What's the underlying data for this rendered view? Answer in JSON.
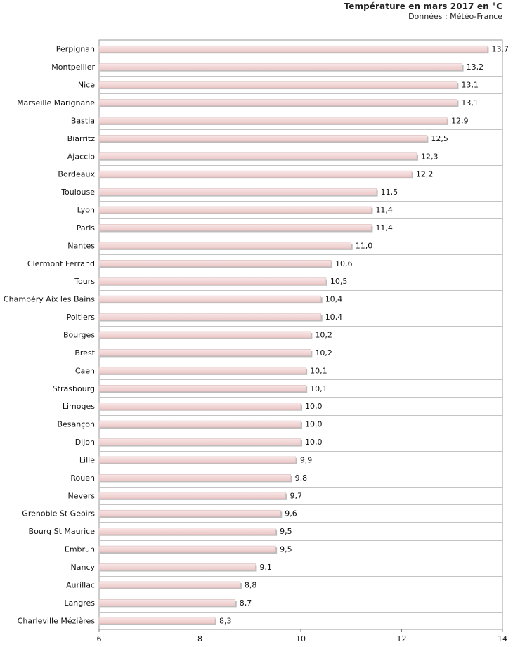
{
  "chart_data": {
    "type": "bar",
    "orientation": "horizontal",
    "title": "Température en mars 2017 en °C",
    "subtitle": "Données : Météo-France",
    "xlabel": "",
    "ylabel": "",
    "xlim": [
      6,
      14
    ],
    "xticks": [
      6,
      8,
      10,
      12,
      14
    ],
    "grid": "horizontal separators",
    "bar_color": "#f0d4d4",
    "categories": [
      "Perpignan",
      "Montpellier",
      "Nice",
      "Marseille Marignane",
      "Bastia",
      "Biarritz",
      "Ajaccio",
      "Bordeaux",
      "Toulouse",
      "Lyon",
      "Paris",
      "Nantes",
      "Clermont Ferrand",
      "Tours",
      "Chambéry Aix les Bains",
      "Poitiers",
      "Bourges",
      "Brest",
      "Caen",
      "Strasbourg",
      "Limoges",
      "Besançon",
      "Dijon",
      "Lille",
      "Rouen",
      "Nevers",
      "Grenoble St Geoirs",
      "Bourg St Maurice",
      "Embrun",
      "Nancy",
      "Aurillac",
      "Langres",
      "Charleville Mézières"
    ],
    "values": [
      13.7,
      13.2,
      13.1,
      13.1,
      12.9,
      12.5,
      12.3,
      12.2,
      11.5,
      11.4,
      11.4,
      11.0,
      10.6,
      10.5,
      10.4,
      10.4,
      10.2,
      10.2,
      10.1,
      10.1,
      10.0,
      10.0,
      10.0,
      9.9,
      9.8,
      9.7,
      9.6,
      9.5,
      9.5,
      9.1,
      8.8,
      8.7,
      8.3
    ],
    "value_labels": [
      "13,7",
      "13,2",
      "13,1",
      "13,1",
      "12,9",
      "12,5",
      "12,3",
      "12,2",
      "11,5",
      "11,4",
      "11,4",
      "11,0",
      "10,6",
      "10,5",
      "10,4",
      "10,4",
      "10,2",
      "10,2",
      "10,1",
      "10,1",
      "10,0",
      "10,0",
      "10,0",
      "9,9",
      "9,8",
      "9,7",
      "9,6",
      "9,5",
      "9,5",
      "9,1",
      "8,8",
      "8,7",
      "8,3"
    ]
  }
}
